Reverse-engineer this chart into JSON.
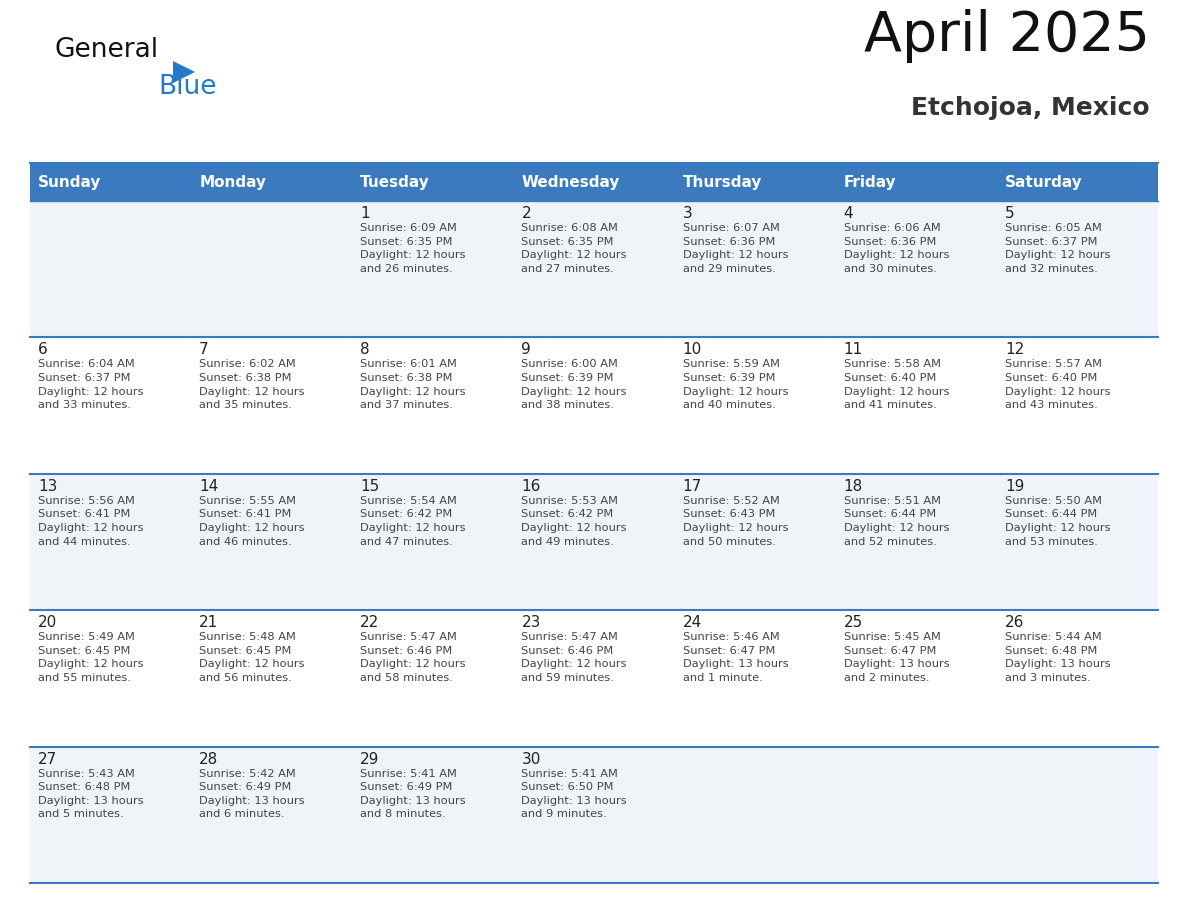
{
  "title": "April 2025",
  "subtitle": "Etchojoa, Mexico",
  "days_of_week": [
    "Sunday",
    "Monday",
    "Tuesday",
    "Wednesday",
    "Thursday",
    "Friday",
    "Saturday"
  ],
  "header_bg": "#3a7bbf",
  "header_text": "#ffffff",
  "row_bg_light": "#f0f4f8",
  "row_bg_white": "#ffffff",
  "separator_color": "#3a7bbf",
  "day_number_color": "#222222",
  "text_color": "#444444",
  "title_color": "#111111",
  "subtitle_color": "#333333",
  "logo_general_color": "#111111",
  "logo_blue_color": "#2577c8",
  "weeks": [
    [
      {
        "day": null,
        "info": null
      },
      {
        "day": null,
        "info": null
      },
      {
        "day": 1,
        "info": "Sunrise: 6:09 AM\nSunset: 6:35 PM\nDaylight: 12 hours\nand 26 minutes."
      },
      {
        "day": 2,
        "info": "Sunrise: 6:08 AM\nSunset: 6:35 PM\nDaylight: 12 hours\nand 27 minutes."
      },
      {
        "day": 3,
        "info": "Sunrise: 6:07 AM\nSunset: 6:36 PM\nDaylight: 12 hours\nand 29 minutes."
      },
      {
        "day": 4,
        "info": "Sunrise: 6:06 AM\nSunset: 6:36 PM\nDaylight: 12 hours\nand 30 minutes."
      },
      {
        "day": 5,
        "info": "Sunrise: 6:05 AM\nSunset: 6:37 PM\nDaylight: 12 hours\nand 32 minutes."
      }
    ],
    [
      {
        "day": 6,
        "info": "Sunrise: 6:04 AM\nSunset: 6:37 PM\nDaylight: 12 hours\nand 33 minutes."
      },
      {
        "day": 7,
        "info": "Sunrise: 6:02 AM\nSunset: 6:38 PM\nDaylight: 12 hours\nand 35 minutes."
      },
      {
        "day": 8,
        "info": "Sunrise: 6:01 AM\nSunset: 6:38 PM\nDaylight: 12 hours\nand 37 minutes."
      },
      {
        "day": 9,
        "info": "Sunrise: 6:00 AM\nSunset: 6:39 PM\nDaylight: 12 hours\nand 38 minutes."
      },
      {
        "day": 10,
        "info": "Sunrise: 5:59 AM\nSunset: 6:39 PM\nDaylight: 12 hours\nand 40 minutes."
      },
      {
        "day": 11,
        "info": "Sunrise: 5:58 AM\nSunset: 6:40 PM\nDaylight: 12 hours\nand 41 minutes."
      },
      {
        "day": 12,
        "info": "Sunrise: 5:57 AM\nSunset: 6:40 PM\nDaylight: 12 hours\nand 43 minutes."
      }
    ],
    [
      {
        "day": 13,
        "info": "Sunrise: 5:56 AM\nSunset: 6:41 PM\nDaylight: 12 hours\nand 44 minutes."
      },
      {
        "day": 14,
        "info": "Sunrise: 5:55 AM\nSunset: 6:41 PM\nDaylight: 12 hours\nand 46 minutes."
      },
      {
        "day": 15,
        "info": "Sunrise: 5:54 AM\nSunset: 6:42 PM\nDaylight: 12 hours\nand 47 minutes."
      },
      {
        "day": 16,
        "info": "Sunrise: 5:53 AM\nSunset: 6:42 PM\nDaylight: 12 hours\nand 49 minutes."
      },
      {
        "day": 17,
        "info": "Sunrise: 5:52 AM\nSunset: 6:43 PM\nDaylight: 12 hours\nand 50 minutes."
      },
      {
        "day": 18,
        "info": "Sunrise: 5:51 AM\nSunset: 6:44 PM\nDaylight: 12 hours\nand 52 minutes."
      },
      {
        "day": 19,
        "info": "Sunrise: 5:50 AM\nSunset: 6:44 PM\nDaylight: 12 hours\nand 53 minutes."
      }
    ],
    [
      {
        "day": 20,
        "info": "Sunrise: 5:49 AM\nSunset: 6:45 PM\nDaylight: 12 hours\nand 55 minutes."
      },
      {
        "day": 21,
        "info": "Sunrise: 5:48 AM\nSunset: 6:45 PM\nDaylight: 12 hours\nand 56 minutes."
      },
      {
        "day": 22,
        "info": "Sunrise: 5:47 AM\nSunset: 6:46 PM\nDaylight: 12 hours\nand 58 minutes."
      },
      {
        "day": 23,
        "info": "Sunrise: 5:47 AM\nSunset: 6:46 PM\nDaylight: 12 hours\nand 59 minutes."
      },
      {
        "day": 24,
        "info": "Sunrise: 5:46 AM\nSunset: 6:47 PM\nDaylight: 13 hours\nand 1 minute."
      },
      {
        "day": 25,
        "info": "Sunrise: 5:45 AM\nSunset: 6:47 PM\nDaylight: 13 hours\nand 2 minutes."
      },
      {
        "day": 26,
        "info": "Sunrise: 5:44 AM\nSunset: 6:48 PM\nDaylight: 13 hours\nand 3 minutes."
      }
    ],
    [
      {
        "day": 27,
        "info": "Sunrise: 5:43 AM\nSunset: 6:48 PM\nDaylight: 13 hours\nand 5 minutes."
      },
      {
        "day": 28,
        "info": "Sunrise: 5:42 AM\nSunset: 6:49 PM\nDaylight: 13 hours\nand 6 minutes."
      },
      {
        "day": 29,
        "info": "Sunrise: 5:41 AM\nSunset: 6:49 PM\nDaylight: 13 hours\nand 8 minutes."
      },
      {
        "day": 30,
        "info": "Sunrise: 5:41 AM\nSunset: 6:50 PM\nDaylight: 13 hours\nand 9 minutes."
      },
      {
        "day": null,
        "info": null
      },
      {
        "day": null,
        "info": null
      },
      {
        "day": null,
        "info": null
      }
    ]
  ]
}
